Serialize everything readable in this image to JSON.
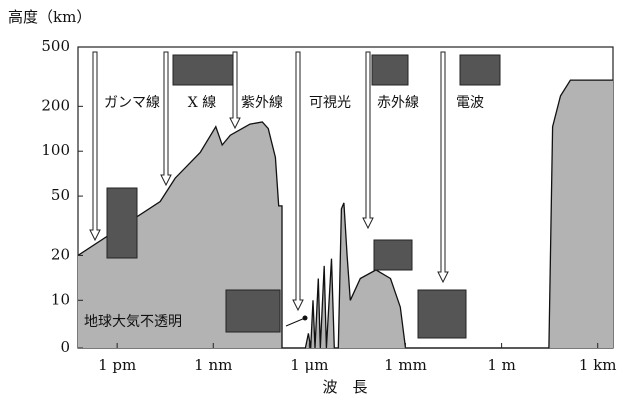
{
  "chart_data": {
    "type": "area",
    "y_axis_title": "高度（km）",
    "x_axis_title": "波　長",
    "color": "#b3b3b3",
    "log_x": true,
    "log_y": true,
    "xlim": [
      6e-14,
      3000
    ],
    "ylim": [
      0,
      500
    ],
    "yticks": [
      0,
      10,
      20,
      50,
      100,
      200,
      500
    ],
    "xticks": [
      {
        "value": 1e-12,
        "label": "1 pm"
      },
      {
        "value": 1e-09,
        "label": "1 nm"
      },
      {
        "value": 1e-06,
        "label": "1 μm"
      },
      {
        "value": 0.001,
        "label": "1 mm"
      },
      {
        "value": 1,
        "label": "1 m"
      },
      {
        "value": 1000,
        "label": "1 km"
      }
    ],
    "x": [
      6e-14,
      2.2e-11,
      6.5e-11,
      3.9e-10,
      1.2e-09,
      1.9e-09,
      3.4e-09,
      1.4e-08,
      3.4e-08,
      5.2e-08,
      8.7e-08,
      1.1e-07,
      1.4e-07,
      1.4e-07,
      7.5e-07,
      9.3e-07,
      1.1e-06,
      1.3e-06,
      1.5e-06,
      1.9e-06,
      2.2e-06,
      2.9e-06,
      3.4e-06,
      4.9e-06,
      6e-06,
      8e-06,
      1e-05,
      1.2e-05,
      1.5e-05,
      1.9e-05,
      3.9e-05,
      0.00012,
      0.00034,
      0.00069,
      0.001,
      30,
      39,
      69,
      140,
      3000
    ],
    "values": [
      20,
      46,
      66,
      98,
      146,
      110,
      128,
      152,
      157,
      142,
      91,
      43,
      43,
      0,
      0,
      6,
      0,
      10,
      0,
      14,
      0,
      17,
      0,
      19,
      0,
      0,
      41,
      45,
      20,
      10,
      14,
      16,
      14,
      9,
      0,
      0,
      146,
      235,
      300,
      300
    ],
    "bands": [
      "ガンマ線",
      "X 線",
      "紫外線",
      "可視光",
      "赤外線",
      "電波"
    ],
    "annotation": "地球大気不透明"
  }
}
